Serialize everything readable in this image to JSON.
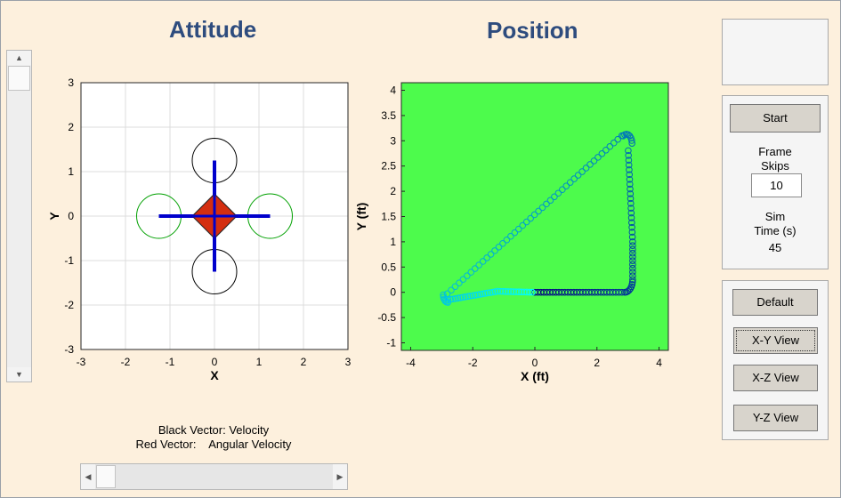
{
  "titles": {
    "attitude": "Attitude",
    "position": "Position"
  },
  "attitude_plot": {
    "xlabel": "X",
    "ylabel": "Y",
    "xlim": [
      -3,
      3
    ],
    "ylim": [
      -3,
      3
    ],
    "ticks": [
      "-3",
      "-2",
      "-1",
      "0",
      "1",
      "2",
      "3"
    ],
    "grid": true,
    "background": "#ffffff",
    "rotors": [
      {
        "x": 0,
        "y": 1.25,
        "r": 0.5,
        "color": "#000000"
      },
      {
        "x": 0,
        "y": -1.25,
        "r": 0.5,
        "color": "#000000"
      },
      {
        "x": -1.25,
        "y": 0,
        "r": 0.5,
        "color": "#00a000"
      },
      {
        "x": 1.25,
        "y": 0,
        "r": 0.5,
        "color": "#00a000"
      }
    ],
    "arm_color": "#0000cc",
    "body_color": "#d42e10"
  },
  "position_plot": {
    "xlabel": "X (ft)",
    "ylabel": "Y (ft)",
    "xlim": [
      -4.3,
      4.3
    ],
    "ylim": [
      -1.15,
      4.15
    ],
    "xticks": [
      "-4",
      "-2",
      "0",
      "2",
      "4"
    ],
    "yticks": [
      "4",
      "3.5",
      "3",
      "2.5",
      "2",
      "1.5",
      "1",
      "0.5",
      "0",
      "-0.5",
      "-1"
    ],
    "background": "#4dfb4c",
    "trajectory_colors": [
      "#000080",
      "#00ffff"
    ]
  },
  "legend": {
    "line1": "Black Vector: Velocity",
    "line2": "Red Vector:    Angular Velocity"
  },
  "controls": {
    "start_label": "Start",
    "frame_skips_label1": "Frame",
    "frame_skips_label2": "Skips",
    "frame_skips_value": "10",
    "sim_time_label1": "Sim",
    "sim_time_label2": "Time (s)",
    "sim_time_value": "45"
  },
  "views": {
    "default_label": "Default",
    "xy_label": "X-Y View",
    "xz_label": "X-Z View",
    "yz_label": "Y-Z View"
  },
  "colors": {
    "background": "#fdf0dd",
    "title": "#2e4c7e"
  }
}
